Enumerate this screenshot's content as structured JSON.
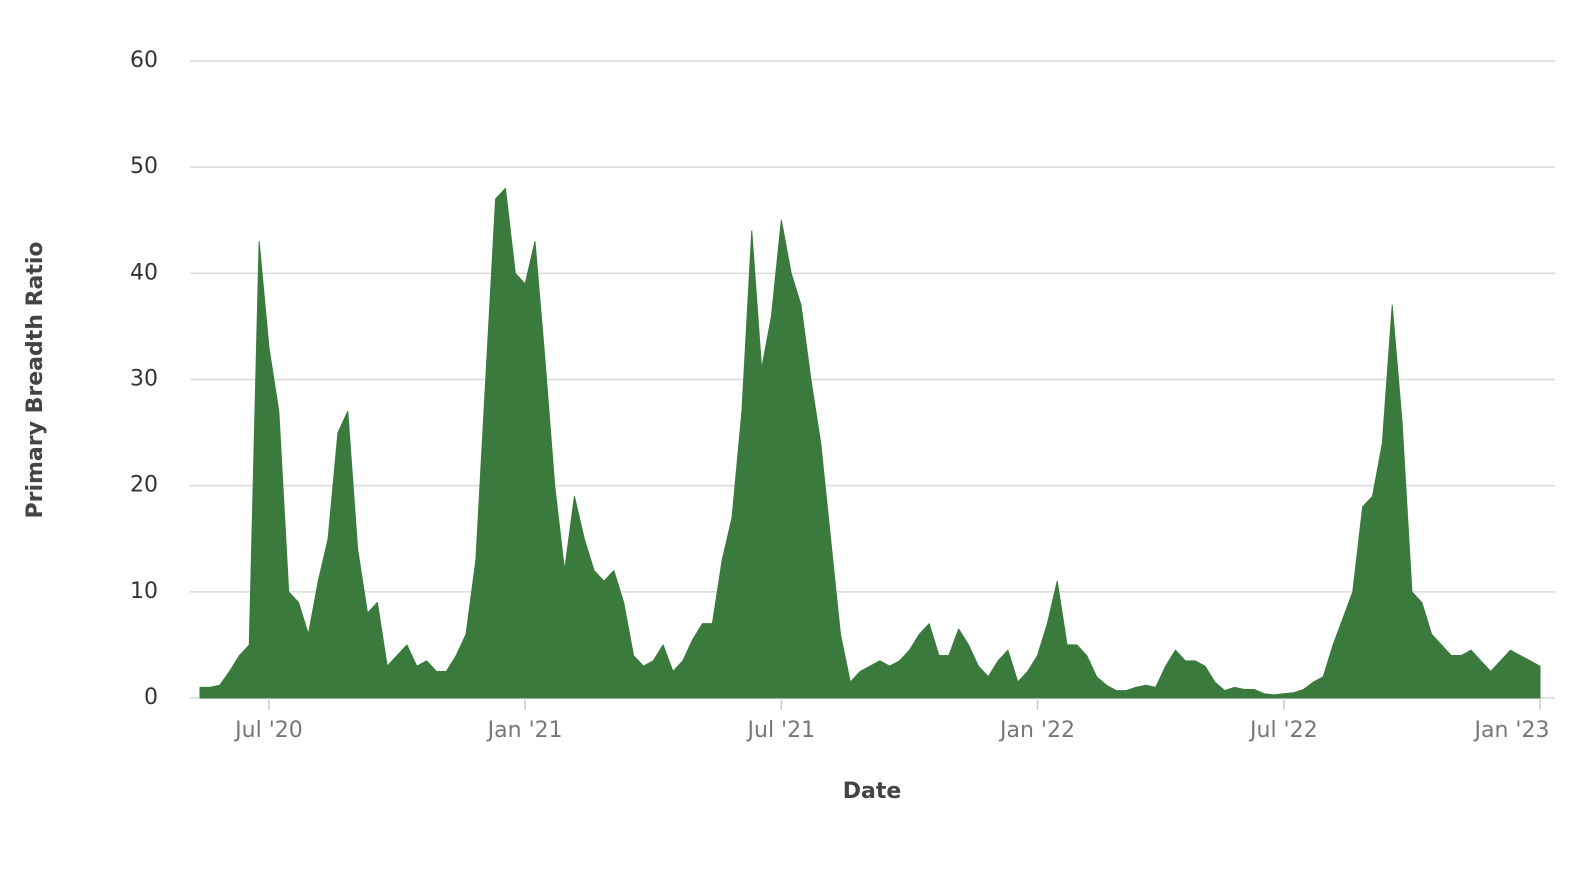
{
  "chart_data": {
    "type": "area",
    "x_label": "Date",
    "y_label": "Primary Breadth Ratio",
    "color": "#3a7a3c",
    "grid": true,
    "ylim": [
      0,
      60
    ],
    "yticks": [
      0,
      10,
      20,
      30,
      40,
      50,
      60
    ],
    "categories": [
      null,
      null,
      null,
      null,
      null,
      null,
      null,
      "Jul '20",
      null,
      null,
      null,
      null,
      null,
      null,
      null,
      null,
      null,
      null,
      null,
      null,
      null,
      null,
      null,
      null,
      null,
      null,
      null,
      null,
      null,
      null,
      null,
      null,
      null,
      "Jan '21",
      null,
      null,
      null,
      null,
      null,
      null,
      null,
      null,
      null,
      null,
      null,
      null,
      null,
      null,
      null,
      null,
      null,
      null,
      null,
      null,
      null,
      null,
      null,
      null,
      null,
      "Jul '21",
      null,
      null,
      null,
      null,
      null,
      null,
      null,
      null,
      null,
      null,
      null,
      null,
      null,
      null,
      null,
      null,
      null,
      null,
      null,
      null,
      null,
      null,
      null,
      null,
      null,
      "Jan '22",
      null,
      null,
      null,
      null,
      null,
      null,
      null,
      null,
      null,
      null,
      null,
      null,
      null,
      null,
      null,
      null,
      null,
      null,
      null,
      null,
      null,
      null,
      null,
      null,
      "Jul '22",
      null,
      null,
      null,
      null,
      null,
      null,
      null,
      null,
      null,
      null,
      null,
      null,
      null,
      null,
      null,
      null,
      null,
      null,
      null,
      null,
      null,
      null,
      null,
      null,
      null,
      "Jan '23"
    ],
    "values": [
      1,
      1,
      1.2,
      2.5,
      4,
      5,
      43,
      33,
      27,
      10,
      9,
      6,
      11,
      15,
      25,
      27,
      14,
      8,
      9,
      3,
      4,
      5,
      3,
      3.5,
      2.5,
      2.5,
      4,
      6,
      13,
      30,
      47,
      48,
      40,
      39,
      43,
      32,
      20,
      12,
      19,
      15,
      12,
      11,
      12,
      9,
      4,
      3,
      3.5,
      5,
      2.5,
      3.5,
      5.5,
      7,
      7,
      13,
      17,
      27,
      44,
      31,
      36,
      45,
      40,
      37,
      30,
      24,
      15,
      6,
      1.5,
      2.5,
      3,
      3.5,
      3,
      3.5,
      4.5,
      6,
      7,
      4,
      4,
      6.5,
      5,
      3,
      2,
      3.5,
      4.5,
      1.5,
      2.5,
      4,
      7,
      11,
      5,
      5,
      4,
      2,
      1.2,
      0.7,
      0.7,
      1,
      1.2,
      1,
      3,
      4.5,
      3.5,
      3.5,
      3,
      1.5,
      0.7,
      1,
      0.8,
      0.8,
      0.4,
      0.3,
      0.4,
      0.5,
      0.8,
      1.5,
      2,
      5,
      7.5,
      10,
      18,
      19,
      24,
      37,
      26,
      10,
      9,
      6,
      5,
      4,
      4,
      4.5,
      3.5,
      2.5,
      3.5,
      4.5,
      4,
      3.5,
      3
    ]
  }
}
